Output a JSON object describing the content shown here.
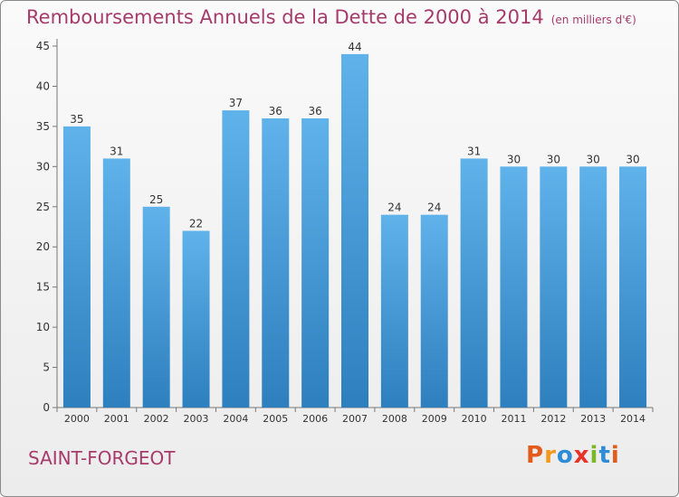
{
  "title": "Remboursements Annuels de la Dette de 2000 à 2014",
  "unit": "(en milliers d'€)",
  "town": "SAINT-FORGEOT",
  "logo": {
    "text": "Proxiti",
    "colors": [
      "#e25a1c",
      "#f29a1f",
      "#2e8bd6",
      "#e8332a",
      "#7ab828",
      "#2e8bd6",
      "#e25a1c"
    ]
  },
  "colors": {
    "bar_top": "#5fb2ea",
    "bar_bottom": "#2d7fbe",
    "title": "#a63b6b"
  },
  "chart_data": {
    "type": "bar",
    "title": "Remboursements Annuels de la Dette de 2000 à 2014",
    "ylabel": "",
    "xlabel": "",
    "categories": [
      "2000",
      "2001",
      "2002",
      "2003",
      "2004",
      "2005",
      "2006",
      "2007",
      "2008",
      "2009",
      "2010",
      "2011",
      "2012",
      "2013",
      "2014"
    ],
    "values": [
      35,
      31,
      25,
      22,
      37,
      36,
      36,
      44,
      24,
      24,
      31,
      30,
      30,
      30,
      30
    ],
    "ylim": [
      0,
      45
    ],
    "yticks": [
      0,
      5,
      10,
      15,
      20,
      25,
      30,
      35,
      40,
      45
    ],
    "grid": false
  }
}
